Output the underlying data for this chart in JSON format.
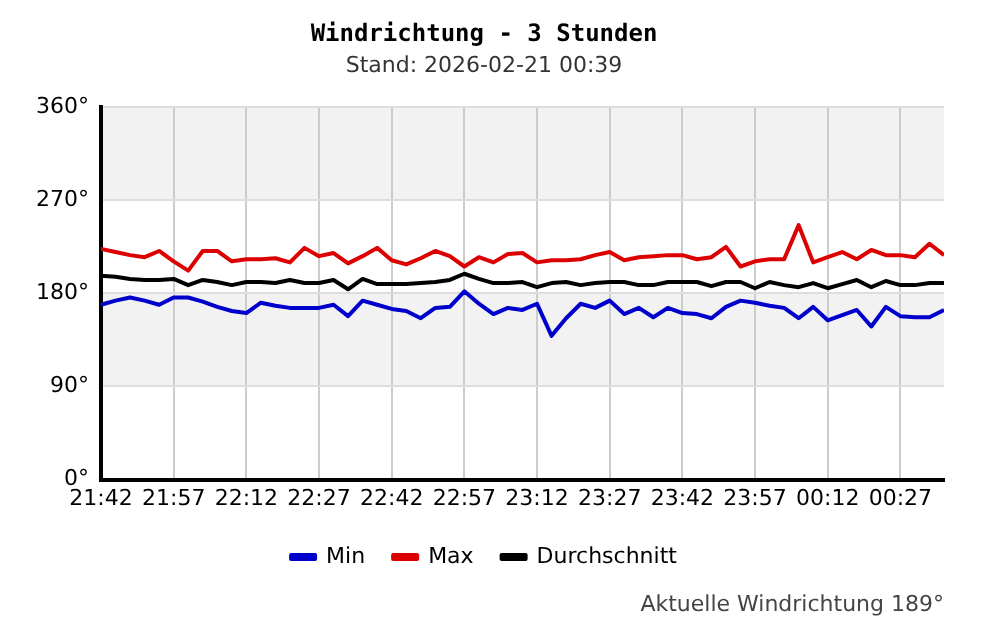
{
  "chart_data": {
    "type": "line",
    "title": "Windrichtung - 3 Stunden",
    "subtitle": "Stand: 2026-02-21 00:39",
    "x": [
      "2026-02-20T21:42",
      "2026-02-20T21:45",
      "2026-02-20T21:48",
      "2026-02-20T21:51",
      "2026-02-20T21:54",
      "2026-02-20T21:57",
      "2026-02-20T22:00",
      "2026-02-20T22:03",
      "2026-02-20T22:06",
      "2026-02-20T22:09",
      "2026-02-20T22:12",
      "2026-02-20T22:15",
      "2026-02-20T22:18",
      "2026-02-20T22:21",
      "2026-02-20T22:24",
      "2026-02-20T22:27",
      "2026-02-20T22:30",
      "2026-02-20T22:33",
      "2026-02-20T22:36",
      "2026-02-20T22:39",
      "2026-02-20T22:42",
      "2026-02-20T22:45",
      "2026-02-20T22:48",
      "2026-02-20T22:51",
      "2026-02-20T22:54",
      "2026-02-20T22:57",
      "2026-02-20T23:00",
      "2026-02-20T23:03",
      "2026-02-20T23:06",
      "2026-02-20T23:09",
      "2026-02-20T23:12",
      "2026-02-20T23:15",
      "2026-02-20T23:18",
      "2026-02-20T23:21",
      "2026-02-20T23:24",
      "2026-02-20T23:27",
      "2026-02-20T23:30",
      "2026-02-20T23:33",
      "2026-02-20T23:36",
      "2026-02-20T23:39",
      "2026-02-20T23:42",
      "2026-02-20T23:45",
      "2026-02-20T23:48",
      "2026-02-20T23:51",
      "2026-02-20T23:54",
      "2026-02-20T23:57",
      "2026-02-21T00:00",
      "2026-02-21T00:03",
      "2026-02-21T00:06",
      "2026-02-21T00:09",
      "2026-02-21T00:12",
      "2026-02-21T00:15",
      "2026-02-21T00:18",
      "2026-02-21T00:21",
      "2026-02-21T00:24",
      "2026-02-21T00:27",
      "2026-02-21T00:30",
      "2026-02-21T00:33",
      "2026-02-21T00:36"
    ],
    "series": [
      {
        "name": "Min",
        "color": "#0000cc",
        "values": [
          169,
          173,
          176,
          173,
          169,
          176,
          176,
          172,
          167,
          163,
          161,
          171,
          168,
          166,
          166,
          166,
          169,
          158,
          173,
          169,
          165,
          163,
          156,
          166,
          167,
          182,
          170,
          160,
          166,
          164,
          170,
          139,
          156,
          170,
          166,
          173,
          160,
          166,
          157,
          166,
          161,
          160,
          156,
          167,
          173,
          171,
          168,
          166,
          156,
          167,
          154,
          159,
          164,
          148,
          167,
          158,
          157,
          157,
          164
        ]
      },
      {
        "name": "Max",
        "color": "#dd0000",
        "values": [
          223,
          220,
          217,
          215,
          221,
          211,
          202,
          221,
          221,
          211,
          213,
          213,
          214,
          210,
          224,
          216,
          219,
          209,
          216,
          224,
          212,
          208,
          214,
          221,
          216,
          206,
          215,
          210,
          218,
          219,
          210,
          212,
          212,
          213,
          217,
          220,
          212,
          215,
          216,
          217,
          217,
          213,
          215,
          225,
          206,
          211,
          213,
          213,
          246,
          210,
          215,
          220,
          213,
          222,
          217,
          217,
          215,
          228,
          217
        ]
      },
      {
        "name": "Durchschnitt",
        "color": "#000000",
        "values": [
          197,
          196,
          194,
          193,
          193,
          194,
          188,
          193,
          191,
          188,
          191,
          191,
          190,
          193,
          190,
          190,
          193,
          184,
          194,
          189,
          189,
          189,
          190,
          191,
          193,
          199,
          194,
          190,
          190,
          191,
          186,
          190,
          191,
          188,
          190,
          191,
          191,
          188,
          188,
          191,
          191,
          191,
          187,
          191,
          191,
          185,
          191,
          188,
          186,
          190,
          185,
          189,
          193,
          186,
          192,
          188,
          188,
          190,
          190
        ]
      }
    ],
    "xlim": [
      "2026-02-20T21:42",
      "2026-02-21T00:36"
    ],
    "xticks": [
      {
        "value": "2026-02-20T21:42",
        "label": "21:42"
      },
      {
        "value": "2026-02-20T21:57",
        "label": "21:57"
      },
      {
        "value": "2026-02-20T22:12",
        "label": "22:12"
      },
      {
        "value": "2026-02-20T22:27",
        "label": "22:27"
      },
      {
        "value": "2026-02-20T22:42",
        "label": "22:42"
      },
      {
        "value": "2026-02-20T22:57",
        "label": "22:57"
      },
      {
        "value": "2026-02-20T23:12",
        "label": "23:12"
      },
      {
        "value": "2026-02-20T23:27",
        "label": "23:27"
      },
      {
        "value": "2026-02-20T23:42",
        "label": "23:42"
      },
      {
        "value": "2026-02-20T23:57",
        "label": "23:57"
      },
      {
        "value": "2026-02-21T00:12",
        "label": "00:12"
      },
      {
        "value": "2026-02-21T00:27",
        "label": "00:27"
      }
    ],
    "ylim": [
      0,
      360
    ],
    "yticks": [
      {
        "value": 0,
        "label": "0°"
      },
      {
        "value": 90,
        "label": "90°"
      },
      {
        "value": 180,
        "label": "180°"
      },
      {
        "value": 270,
        "label": "270°"
      },
      {
        "value": 360,
        "label": "360°"
      }
    ],
    "bands": [
      {
        "axis": "y",
        "from": 90,
        "to": 180,
        "color": "#f2f2f2"
      },
      {
        "axis": "y",
        "from": 270,
        "to": 360,
        "color": "#f2f2f2"
      }
    ],
    "grid": true,
    "legend": "bottom",
    "marker": "none",
    "line_style": "solid",
    "annotations": [
      "Aktuelle Windrichtung 189°"
    ]
  }
}
